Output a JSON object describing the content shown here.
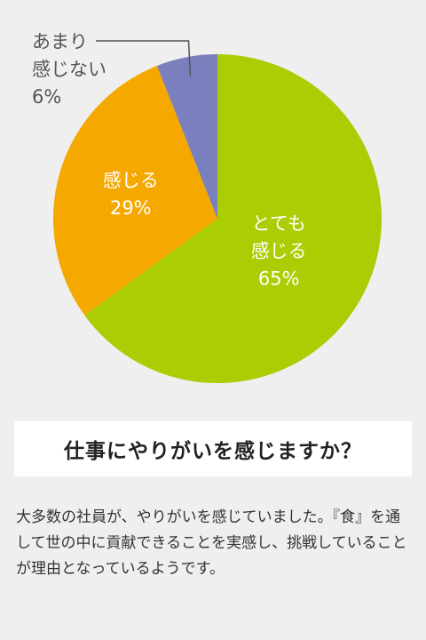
{
  "chart_data": {
    "type": "pie",
    "slices": [
      {
        "label_lines": [
          "とても",
          "感じる"
        ],
        "value": 65,
        "value_label": "65%",
        "color": "#abcd03",
        "label_color": "#ffffff"
      },
      {
        "label_lines": [
          "感じる"
        ],
        "value": 29,
        "value_label": "29%",
        "color": "#f5a800",
        "label_color": "#ffffff"
      },
      {
        "label_lines": [
          "あまり",
          "感じない"
        ],
        "value": 6,
        "value_label": "6%",
        "color": "#7a7fbd",
        "label_color": "#555555",
        "callout": true
      }
    ],
    "start": "12 o'clock",
    "direction": "clockwise"
  },
  "question": {
    "title": "仕事にやりがいを感じますか？"
  },
  "description": {
    "text": "大多数の社員が、やりがいを感じていました。『食』を通して世の中に貢献できることを実感し、挑戦していることが理由となっているようです。"
  }
}
